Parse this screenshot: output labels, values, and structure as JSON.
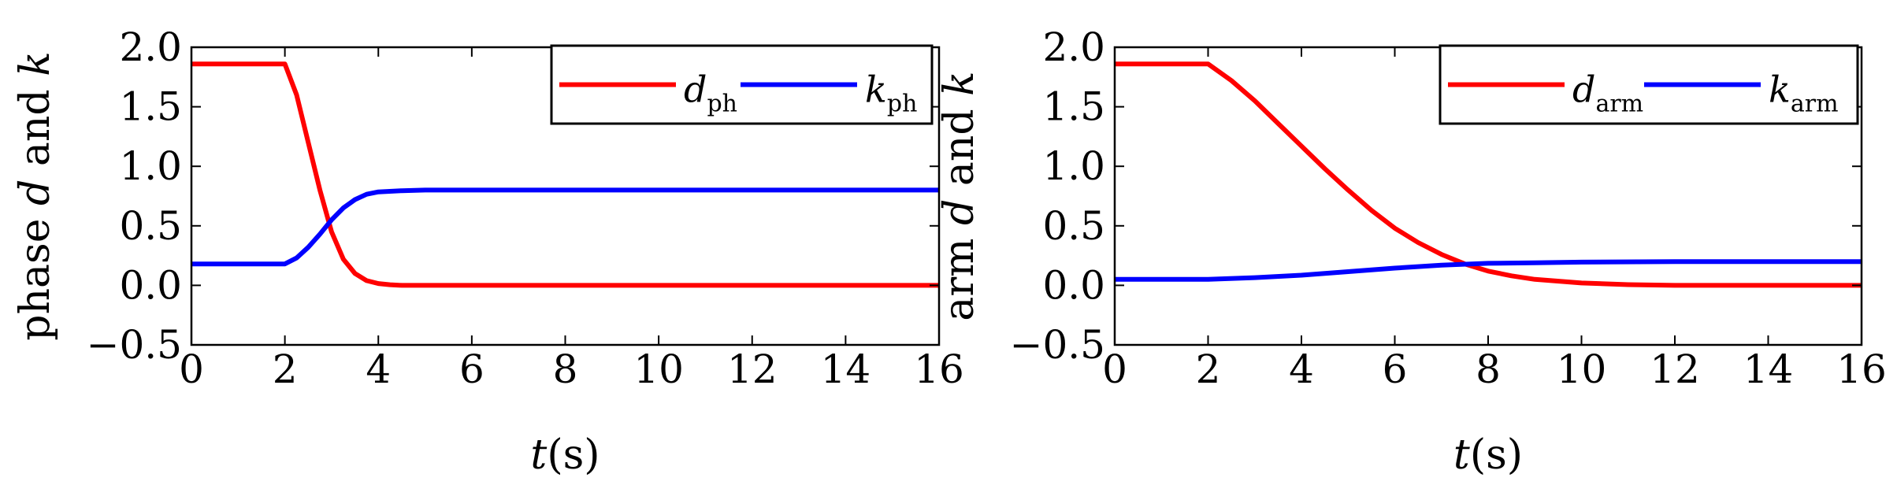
{
  "chart_data": [
    {
      "type": "line",
      "xlabel": "t(s)",
      "ylabel": "phase d and k",
      "xlim": [
        0,
        16
      ],
      "ylim": [
        -0.5,
        2.0
      ],
      "xticks": [
        "0",
        "2",
        "4",
        "6",
        "8",
        "10",
        "12",
        "14",
        "16"
      ],
      "yticks": [
        "−0.5",
        "0.0",
        "0.5",
        "1.0",
        "1.5",
        "2.0"
      ],
      "grid": false,
      "legend_position": "top-right",
      "series": [
        {
          "name": "d_ph",
          "name_main": "d",
          "name_sub": "ph",
          "color": "#ff0000",
          "x": [
            0,
            2.0,
            2.25,
            2.5,
            2.75,
            3.0,
            3.25,
            3.5,
            3.75,
            4.0,
            4.25,
            4.5,
            5.0,
            16
          ],
          "y": [
            1.86,
            1.86,
            1.6,
            1.2,
            0.8,
            0.45,
            0.22,
            0.1,
            0.04,
            0.015,
            0.005,
            0.0,
            0.0,
            0.0
          ]
        },
        {
          "name": "k_ph",
          "name_main": "k",
          "name_sub": "ph",
          "color": "#0000ff",
          "x": [
            0,
            2.0,
            2.25,
            2.5,
            2.75,
            3.0,
            3.25,
            3.5,
            3.75,
            4.0,
            4.5,
            5.0,
            16
          ],
          "y": [
            0.18,
            0.18,
            0.23,
            0.32,
            0.43,
            0.55,
            0.65,
            0.72,
            0.765,
            0.785,
            0.795,
            0.8,
            0.8
          ]
        }
      ]
    },
    {
      "type": "line",
      "xlabel": "t(s)",
      "ylabel": "arm d and k",
      "xlim": [
        0,
        16
      ],
      "ylim": [
        -0.5,
        2.0
      ],
      "xticks": [
        "0",
        "2",
        "4",
        "6",
        "8",
        "10",
        "12",
        "14",
        "16"
      ],
      "yticks": [
        "−0.5",
        "0.0",
        "0.5",
        "1.0",
        "1.5",
        "2.0"
      ],
      "grid": false,
      "legend_position": "top-right",
      "series": [
        {
          "name": "d_arm",
          "name_main": "d",
          "name_sub": "arm",
          "color": "#ff0000",
          "x": [
            0,
            2.0,
            2.5,
            3.0,
            3.5,
            4.0,
            4.5,
            5.0,
            5.5,
            6.0,
            6.5,
            7.0,
            7.5,
            8.0,
            8.5,
            9.0,
            10.0,
            11.0,
            12.0,
            16
          ],
          "y": [
            1.86,
            1.86,
            1.72,
            1.55,
            1.36,
            1.17,
            0.98,
            0.8,
            0.63,
            0.48,
            0.36,
            0.26,
            0.18,
            0.12,
            0.08,
            0.05,
            0.02,
            0.006,
            0.0,
            0.0
          ]
        },
        {
          "name": "k_arm",
          "name_main": "k",
          "name_sub": "arm",
          "color": "#0000ff",
          "x": [
            0,
            2.0,
            3.0,
            4.0,
            5.0,
            6.0,
            7.0,
            8.0,
            9.0,
            10.0,
            12.0,
            16
          ],
          "y": [
            0.05,
            0.05,
            0.065,
            0.085,
            0.115,
            0.145,
            0.17,
            0.185,
            0.19,
            0.195,
            0.2,
            0.2
          ]
        }
      ]
    }
  ]
}
